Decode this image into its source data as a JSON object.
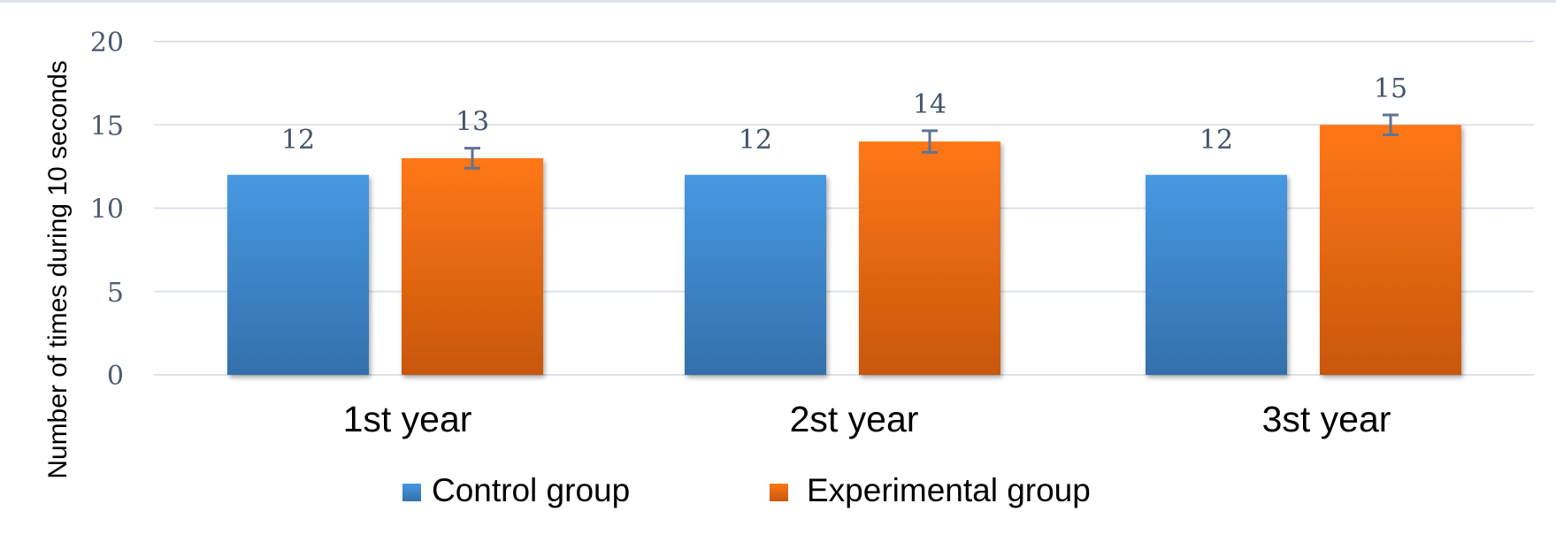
{
  "chart_data": {
    "type": "bar",
    "title": "",
    "xlabel": "",
    "ylabel": "Number of times during 10 seconds",
    "ylim": [
      0,
      20
    ],
    "yticks": [
      0,
      5,
      10,
      15,
      20
    ],
    "ytick_labels": [
      "0",
      "5",
      "10",
      "15",
      "20"
    ],
    "grid": true,
    "categories": [
      "1st year",
      "2st year",
      "3st year"
    ],
    "series": [
      {
        "name": "Control group",
        "values": [
          12,
          12,
          12
        ],
        "data_labels": [
          "12",
          "12",
          "12"
        ],
        "color_top": "#4798e2",
        "color_bottom": "#3370ab",
        "error": null
      },
      {
        "name": "Experimental group",
        "values": [
          13,
          14,
          15
        ],
        "data_labels": [
          "13",
          "14",
          "15"
        ],
        "color_top": "#ff7714",
        "color_bottom": "#c8570f",
        "error": [
          0.6,
          0.65,
          0.6
        ],
        "error_color": "#5f7394"
      }
    ],
    "legend": {
      "position": "bottom-center",
      "entries": [
        "Control group",
        "Experimental group"
      ]
    }
  }
}
